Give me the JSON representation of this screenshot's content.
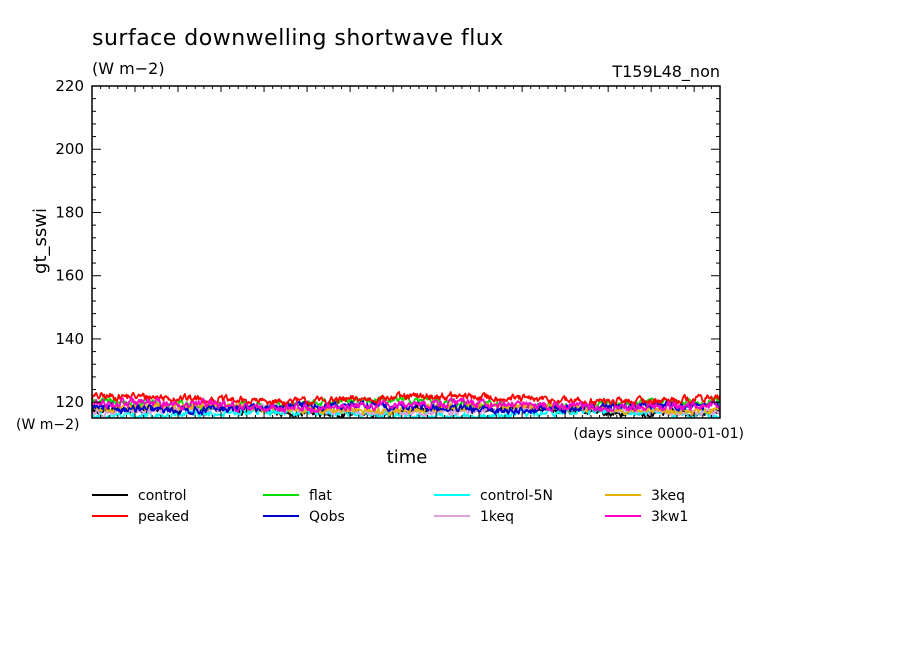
{
  "chart_data": {
    "type": "line",
    "title": "surface downwelling shortwave flux",
    "units": "(W m−2)",
    "run_label": "T159L48_non",
    "ylabel": "gt_sswi",
    "xlabel": "time",
    "y_units_label": "(W m−2)",
    "x_units_label": "(days since 0000-01-01)",
    "ylim": [
      115,
      220
    ],
    "yticks": [
      120,
      140,
      160,
      180,
      200,
      220
    ],
    "x_range": [
      0,
      730
    ],
    "x_tick_labels_shown": false,
    "grid": false,
    "legend_position": "below",
    "series": [
      {
        "name": "control",
        "color": "#000000",
        "mean": 117.2,
        "amplitude": 2.0
      },
      {
        "name": "peaked",
        "color": "#ff0000",
        "mean": 121.0,
        "amplitude": 2.2
      },
      {
        "name": "flat",
        "color": "#00dd00",
        "mean": 119.6,
        "amplitude": 2.0
      },
      {
        "name": "Qobs",
        "color": "#0000cc",
        "mean": 118.3,
        "amplitude": 2.2
      },
      {
        "name": "control-5N",
        "color": "#00ffff",
        "mean": 116.3,
        "amplitude": 2.2
      },
      {
        "name": "1keq",
        "color": "#dda0dd",
        "mean": 117.5,
        "amplitude": 2.0
      },
      {
        "name": "3keq",
        "color": "#e6b000",
        "mean": 118.0,
        "amplitude": 2.0
      },
      {
        "name": "3kw1",
        "color": "#ff00c8",
        "mean": 119.0,
        "amplitude": 2.4
      }
    ]
  }
}
